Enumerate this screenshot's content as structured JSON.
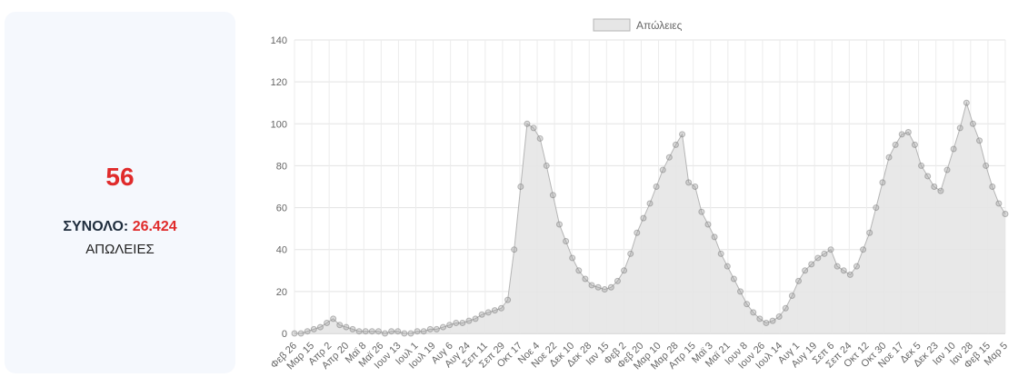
{
  "summary": {
    "today_value": "56",
    "total_label": "ΣΥΝΟΛΟ:",
    "total_value": "26.424",
    "subtitle": "ΑΠΩΛΕΙΕΣ"
  },
  "colors": {
    "accent": "#e02b2b",
    "fill": "#e6e6e6",
    "line": "#b5b5b5",
    "point": "#9a9a9a"
  },
  "chart_data": {
    "type": "area",
    "title": "",
    "xlabel": "",
    "ylabel": "",
    "ylim": [
      0,
      140
    ],
    "y_ticks": [
      0,
      20,
      40,
      60,
      80,
      100,
      120,
      140
    ],
    "grid": true,
    "legend_position": "top-center",
    "x_tick_labels": [
      "Φεβ 26",
      "Μαρ 15",
      "Απρ 2",
      "Απρ 20",
      "Μαϊ 8",
      "Μαϊ 26",
      "Ιουν 13",
      "Ιουλ 1",
      "Ιουλ 19",
      "Αυγ 6",
      "Αυγ 24",
      "Σεπ 11",
      "Σεπ 29",
      "Οκτ 17",
      "Νοε 4",
      "Νοε 22",
      "Δεκ 10",
      "Δεκ 28",
      "Ιαν 15",
      "Φεβ 2",
      "Φεβ 20",
      "Μαρ 10",
      "Μαρ 28",
      "Απρ 15",
      "Μαϊ 3",
      "Μαϊ 21",
      "Ιουν 8",
      "Ιουν 26",
      "Ιουλ 14",
      "Αυγ 1",
      "Αυγ 19",
      "Σεπ 6",
      "Σεπ 24",
      "Οκτ 12",
      "Οκτ 30",
      "Νοε 17",
      "Δεκ 5",
      "Δεκ 23",
      "Ιαν 10",
      "Ιαν 28",
      "Φεβ 15",
      "Μαρ 5"
    ],
    "series": [
      {
        "name": "Απώλειες",
        "values": [
          0,
          0,
          1,
          2,
          3,
          5,
          7,
          4,
          3,
          2,
          1,
          1,
          1,
          1,
          0,
          1,
          1,
          0,
          0,
          1,
          1,
          2,
          2,
          3,
          4,
          5,
          5,
          6,
          7,
          9,
          10,
          11,
          12,
          16,
          40,
          70,
          100,
          98,
          93,
          80,
          66,
          52,
          44,
          36,
          30,
          26,
          23,
          22,
          21,
          22,
          25,
          30,
          38,
          48,
          55,
          62,
          70,
          78,
          84,
          90,
          95,
          72,
          70,
          58,
          52,
          46,
          38,
          32,
          26,
          20,
          14,
          10,
          7,
          5,
          6,
          8,
          12,
          18,
          25,
          30,
          33,
          36,
          38,
          40,
          32,
          30,
          28,
          32,
          40,
          48,
          60,
          72,
          84,
          90,
          95,
          96,
          90,
          80,
          75,
          70,
          68,
          78,
          88,
          98,
          110,
          100,
          92,
          80,
          70,
          62,
          57
        ]
      }
    ]
  }
}
